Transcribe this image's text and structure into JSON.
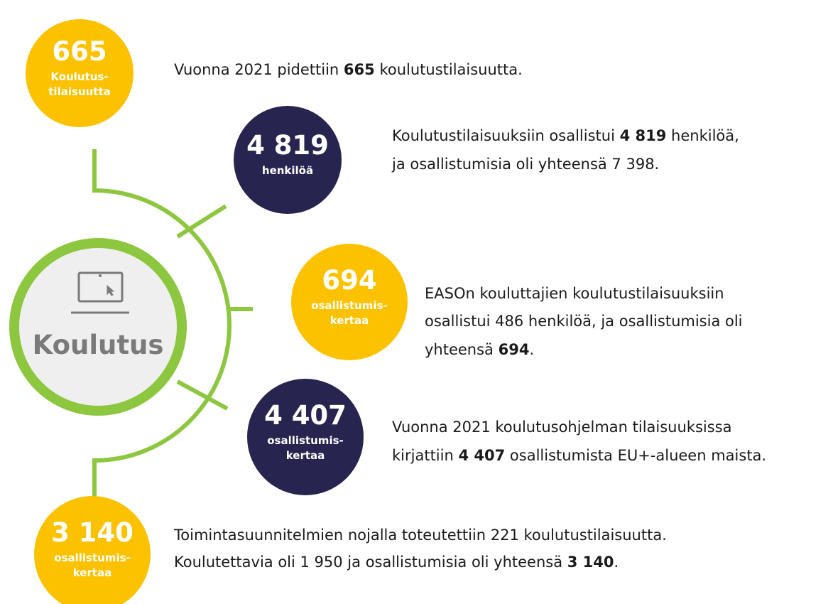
{
  "center": {
    "label": "Koulutus"
  },
  "items": [
    {
      "number": "665",
      "label": [
        "Koulutus-",
        "tilaisuutta"
      ],
      "color": "#fcc200",
      "text": [
        [
          {
            "text": "Vuonna 2021 pidettiin "
          },
          {
            "text": "665",
            "bold": true
          },
          {
            "text": " koulutustilaisuutta."
          }
        ]
      ]
    },
    {
      "number": "4 819",
      "label": [
        "henkilöä"
      ],
      "color": "#272550",
      "text": [
        [
          {
            "text": "Koulutustilaisuuksiin osallistui "
          },
          {
            "text": "4 819",
            "bold": true
          },
          {
            "text": " henkilöä,"
          }
        ],
        [
          {
            "text": "ja osallistumisia oli yhteensä 7 398."
          }
        ]
      ]
    },
    {
      "number": "694",
      "label": [
        "osallistumis-",
        "kertaa"
      ],
      "color": "#fcc200",
      "text": [
        [
          {
            "text": "EASOn kouluttajien koulutustilaisuuksiin"
          }
        ],
        [
          {
            "text": "osallistui 486 henkilöä, ja osallistumisia oli"
          }
        ],
        [
          {
            "text": "yhteensä "
          },
          {
            "text": "694",
            "bold": true
          },
          {
            "text": "."
          }
        ]
      ]
    },
    {
      "number": "4 407",
      "label": [
        "osallistumis-",
        "kertaa"
      ],
      "color": "#272550",
      "text": [
        [
          {
            "text": "Vuonna 2021 koulutusohjelman tilaisuuksissa"
          }
        ],
        [
          {
            "text": "kirjattiin "
          },
          {
            "text": "4 407",
            "bold": true
          },
          {
            "text": " osallistumista EU+-alueen maista."
          }
        ]
      ]
    },
    {
      "number": "3 140",
      "label": [
        "osallistumis-",
        "kertaa"
      ],
      "color": "#fcc200",
      "text": [
        [
          {
            "text": "Toimintasuunnitelmien nojalla toteutettiin 221 koulutustilaisuutta."
          }
        ],
        [
          {
            "text": "Koulutettavia oli 1 950 ja osallistumisia oli yhteensä "
          },
          {
            "text": "3 140",
            "bold": true
          },
          {
            "text": "."
          }
        ]
      ]
    }
  ]
}
